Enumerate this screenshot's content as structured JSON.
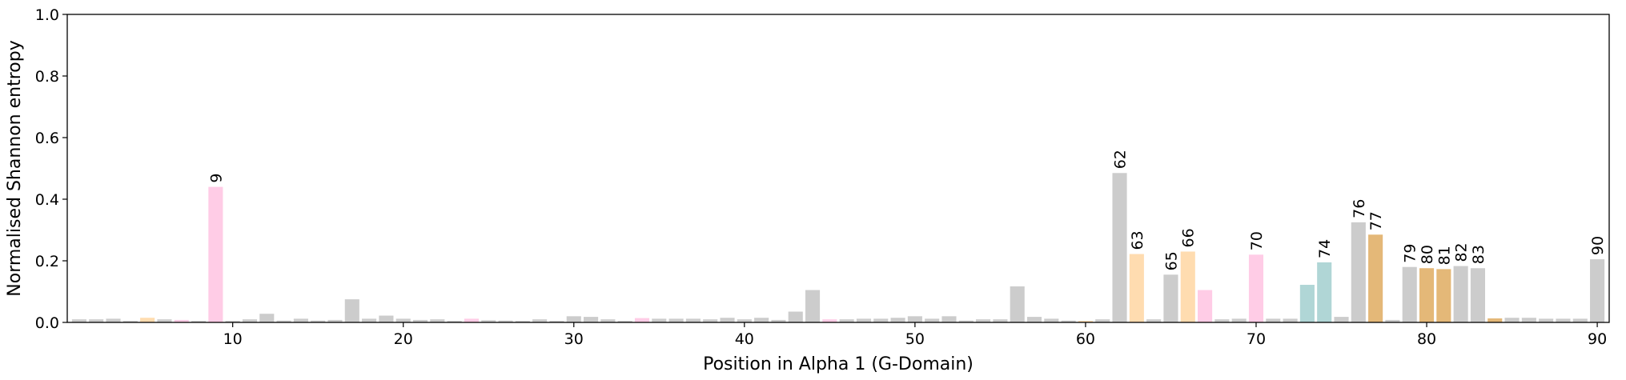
{
  "chart_data": {
    "type": "bar",
    "title": "",
    "xlabel": "Position in Alpha 1 (G-Domain)",
    "ylabel": "Normalised Shannon entropy",
    "xlim": [
      0.3,
      90.7
    ],
    "ylim": [
      0,
      1.0
    ],
    "xticks": [
      10,
      20,
      30,
      40,
      50,
      60,
      70,
      80,
      90
    ],
    "yticks": [
      0.0,
      0.2,
      0.4,
      0.6,
      0.8,
      1.0
    ],
    "ytick_labels": [
      "0.0",
      "0.2",
      "0.4",
      "0.6",
      "0.8",
      "1.0"
    ],
    "grid": false,
    "legend": "none",
    "colors": {
      "gray": "#cccccc",
      "pink": "#ffcce6",
      "peach": "#ffdcb0",
      "teal": "#b0d6d6",
      "gold": "#e4b878"
    },
    "positions": [
      1,
      2,
      3,
      4,
      5,
      6,
      7,
      8,
      9,
      10,
      11,
      12,
      13,
      14,
      15,
      16,
      17,
      18,
      19,
      20,
      21,
      22,
      23,
      24,
      25,
      26,
      27,
      28,
      29,
      30,
      31,
      32,
      33,
      34,
      35,
      36,
      37,
      38,
      39,
      40,
      41,
      42,
      43,
      44,
      45,
      46,
      47,
      48,
      49,
      50,
      51,
      52,
      53,
      54,
      55,
      56,
      57,
      58,
      59,
      60,
      61,
      62,
      63,
      64,
      65,
      66,
      67,
      68,
      69,
      70,
      71,
      72,
      73,
      74,
      75,
      76,
      77,
      78,
      79,
      80,
      81,
      82,
      83,
      84,
      85,
      86,
      87,
      88,
      89,
      90
    ],
    "values": [
      0.01,
      0.01,
      0.012,
      0.005,
      0.015,
      0.01,
      0.008,
      0.005,
      0.44,
      0.005,
      0.01,
      0.028,
      0.006,
      0.012,
      0.006,
      0.008,
      0.075,
      0.012,
      0.022,
      0.012,
      0.008,
      0.01,
      0.005,
      0.012,
      0.007,
      0.006,
      0.005,
      0.01,
      0.005,
      0.02,
      0.018,
      0.01,
      0.005,
      0.014,
      0.012,
      0.012,
      0.012,
      0.01,
      0.015,
      0.01,
      0.015,
      0.008,
      0.035,
      0.105,
      0.01,
      0.01,
      0.012,
      0.012,
      0.015,
      0.02,
      0.012,
      0.02,
      0.006,
      0.01,
      0.01,
      0.117,
      0.018,
      0.012,
      0.006,
      0.005,
      0.01,
      0.485,
      0.222,
      0.01,
      0.155,
      0.23,
      0.105,
      0.01,
      0.012,
      0.22,
      0.012,
      0.012,
      0.122,
      0.195,
      0.018,
      0.325,
      0.285,
      0.008,
      0.18,
      0.176,
      0.173,
      0.183,
      0.176,
      0.013,
      0.015,
      0.015,
      0.012,
      0.012,
      0.012,
      0.205
    ],
    "bar_colors": [
      "gray",
      "gray",
      "gray",
      "gray",
      "peach",
      "gray",
      "pink",
      "gray",
      "pink",
      "gray",
      "gray",
      "gray",
      "gray",
      "gray",
      "gray",
      "gray",
      "gray",
      "gray",
      "gray",
      "gray",
      "gray",
      "gray",
      "gray",
      "pink",
      "gray",
      "gray",
      "gray",
      "gray",
      "gray",
      "gray",
      "gray",
      "gray",
      "gray",
      "pink",
      "gray",
      "gray",
      "gray",
      "gray",
      "gray",
      "gray",
      "gray",
      "gray",
      "gray",
      "gray",
      "pink",
      "gray",
      "gray",
      "gray",
      "gray",
      "gray",
      "gray",
      "gray",
      "gray",
      "gray",
      "gray",
      "gray",
      "gray",
      "gray",
      "gray",
      "peach",
      "gray",
      "gray",
      "peach",
      "gray",
      "gray",
      "peach",
      "pink",
      "gray",
      "gray",
      "pink",
      "gray",
      "gray",
      "teal",
      "teal",
      "gray",
      "gray",
      "gold",
      "gray",
      "gray",
      "gold",
      "gold",
      "gray",
      "gray",
      "gold",
      "gray",
      "gray",
      "gray",
      "gray",
      "gray",
      "gray"
    ],
    "annotations": [
      {
        "x": 9,
        "label": "9"
      },
      {
        "x": 62,
        "label": "62"
      },
      {
        "x": 63,
        "label": "63"
      },
      {
        "x": 65,
        "label": "65"
      },
      {
        "x": 66,
        "label": "66"
      },
      {
        "x": 70,
        "label": "70"
      },
      {
        "x": 74,
        "label": "74"
      },
      {
        "x": 76,
        "label": "76"
      },
      {
        "x": 77,
        "label": "77"
      },
      {
        "x": 79,
        "label": "79"
      },
      {
        "x": 80,
        "label": "80"
      },
      {
        "x": 81,
        "label": "81"
      },
      {
        "x": 82,
        "label": "82"
      },
      {
        "x": 83,
        "label": "83"
      },
      {
        "x": 90,
        "label": "90"
      }
    ]
  }
}
